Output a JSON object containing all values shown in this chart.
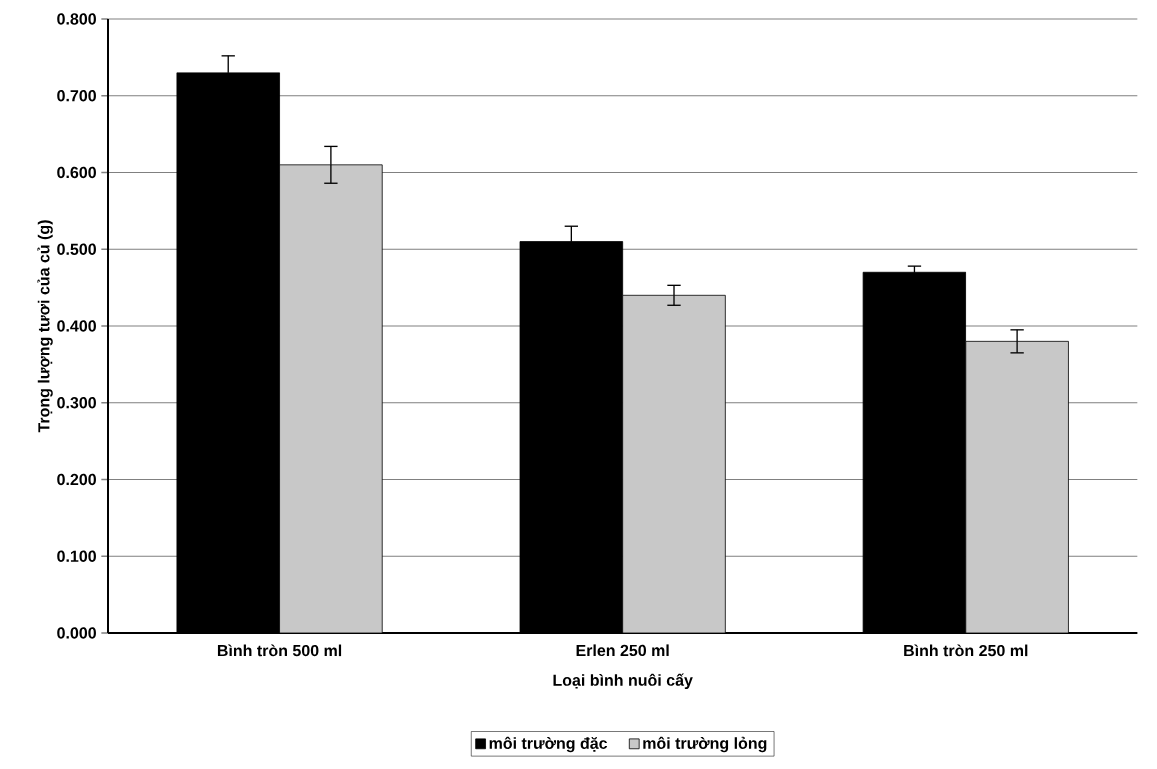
{
  "chart_data": {
    "type": "bar",
    "xlabel": "Loại bình nuôi cấy",
    "ylabel": "Trọng lượng tươi của củ (g)",
    "categories": [
      "Bình tròn 500 ml",
      "Erlen 250 ml",
      "Bình tròn 250 ml"
    ],
    "series": [
      {
        "name": "môi trường đặc",
        "color": "#000000",
        "values": [
          0.73,
          0.51,
          0.47
        ],
        "errors": [
          0.022,
          0.02,
          0.008
        ]
      },
      {
        "name": "môi trường lỏng",
        "color": "#c8c8c8",
        "values": [
          0.61,
          0.44,
          0.38
        ],
        "errors": [
          0.024,
          0.013,
          0.015
        ]
      }
    ],
    "ylim": [
      0,
      0.8
    ],
    "yticks": [
      {
        "value": 0,
        "label": "0.000"
      },
      {
        "value": 0.1,
        "label": "0.100"
      },
      {
        "value": 0.2,
        "label": "0.200"
      },
      {
        "value": 0.3,
        "label": "0.300"
      },
      {
        "value": 0.4,
        "label": "0.400"
      },
      {
        "value": 0.5,
        "label": "0.500"
      },
      {
        "value": 0.6,
        "label": "0.600"
      },
      {
        "value": 0.7,
        "label": "0.700"
      },
      {
        "value": 0.8,
        "label": "0.800"
      }
    ],
    "grid": "y",
    "legend": "bottom"
  }
}
